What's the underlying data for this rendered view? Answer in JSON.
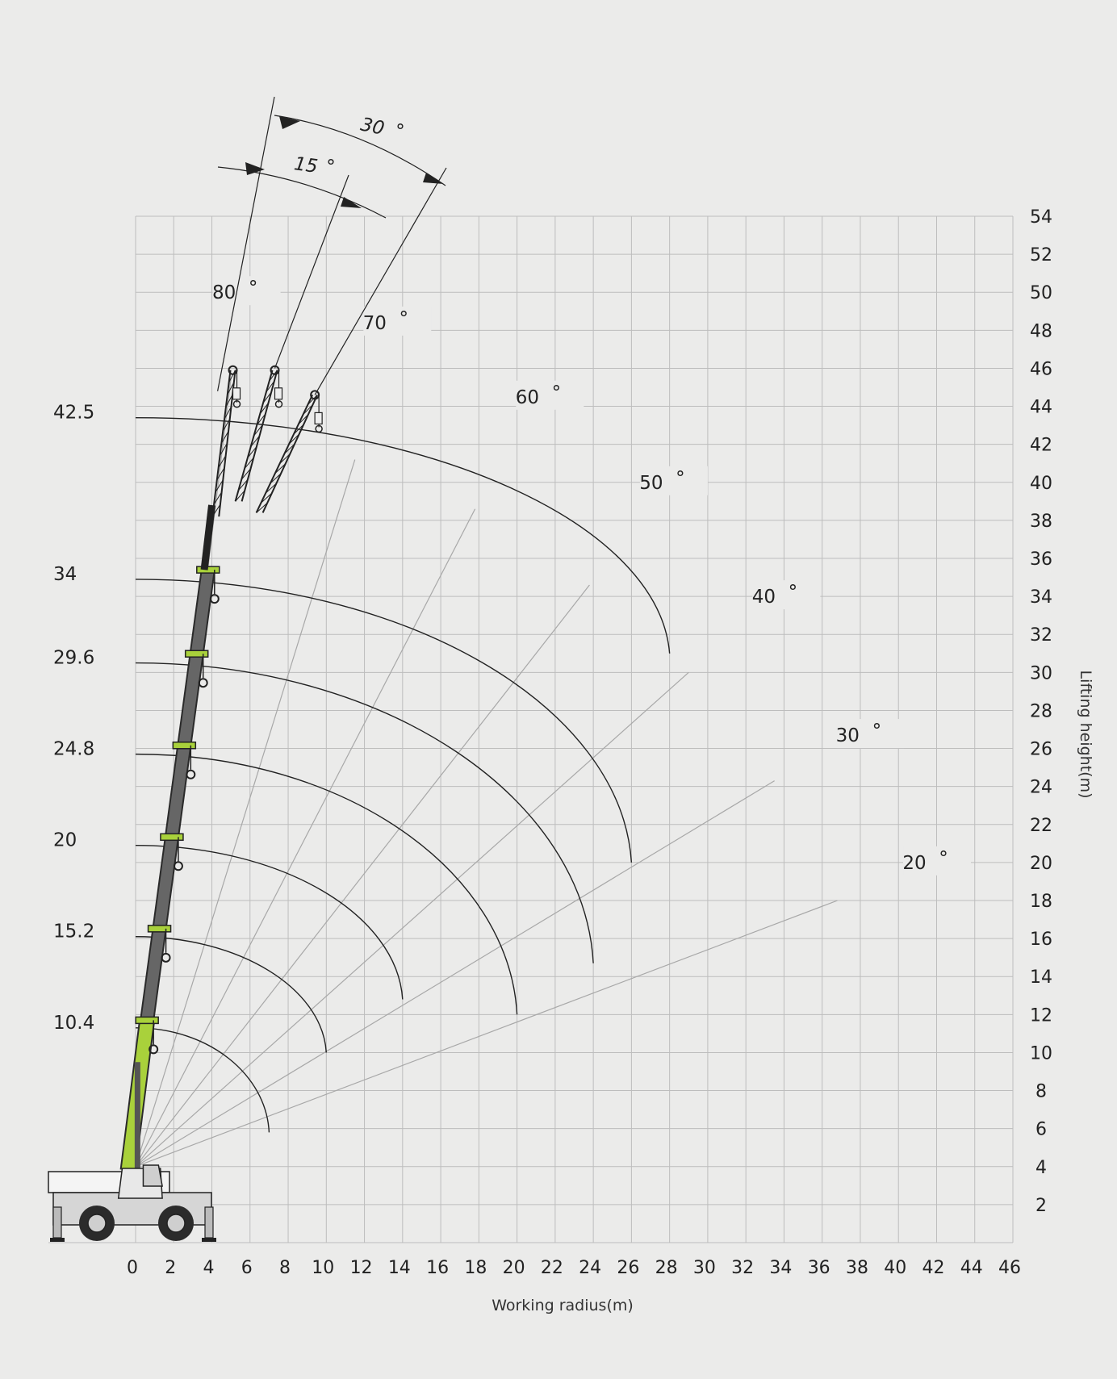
{
  "chart_data": {
    "type": "line",
    "title": "",
    "xlabel": "Working radius(m)",
    "ylabel": "Lifting height(m)",
    "xlim": [
      0,
      46
    ],
    "ylim": [
      0,
      54
    ],
    "x_ticks": [
      0,
      2,
      4,
      6,
      8,
      10,
      12,
      14,
      16,
      18,
      20,
      22,
      24,
      26,
      28,
      30,
      32,
      34,
      36,
      38,
      40,
      42,
      44,
      46
    ],
    "y_ticks": [
      2,
      4,
      6,
      8,
      10,
      12,
      14,
      16,
      18,
      20,
      22,
      24,
      26,
      28,
      30,
      32,
      34,
      36,
      38,
      40,
      42,
      44,
      46,
      48,
      50,
      52,
      54
    ],
    "grid": true,
    "colors": {
      "background": "#ebebea",
      "grid": "#bdbdbd",
      "boom_base": "#a9d13b",
      "boom": "#666666",
      "arc": "#222222",
      "ray": "#a8a8a8"
    },
    "boom_lengths": [
      {
        "label": "10.4",
        "value": 10.4,
        "arc_end": [
          7,
          5.8
        ]
      },
      {
        "label": "15.2",
        "value": 15.2,
        "arc_end": [
          10,
          10
        ]
      },
      {
        "label": "20",
        "value": 20,
        "arc_end": [
          14,
          12.8
        ]
      },
      {
        "label": "24.8",
        "value": 24.8,
        "arc_end": [
          20,
          12
        ]
      },
      {
        "label": "29.6",
        "value": 29.6,
        "arc_end": [
          24,
          14.7
        ]
      },
      {
        "label": "34",
        "value": 34,
        "arc_end": [
          26,
          20
        ]
      },
      {
        "label": "42.5",
        "value": 42.5,
        "arc_end": [
          28,
          31
        ]
      }
    ],
    "boom_angles": [
      {
        "label": "80",
        "value": 80,
        "ray_end": [
          5,
          45.5
        ]
      },
      {
        "label": "70",
        "value": 70,
        "ray_end": [
          11.5,
          41.2
        ]
      },
      {
        "label": "60",
        "value": 60,
        "ray_end": [
          17.8,
          38.6
        ]
      },
      {
        "label": "50",
        "value": 50,
        "ray_end": [
          23.8,
          34.6
        ]
      },
      {
        "label": "40",
        "value": 40,
        "ray_end": [
          29,
          30
        ]
      },
      {
        "label": "30",
        "value": 30,
        "ray_end": [
          33.5,
          24.3
        ]
      },
      {
        "label": "20",
        "value": 20,
        "ray_end": [
          36.8,
          18
        ]
      }
    ],
    "jib_offsets": [
      {
        "label": "15",
        "value": 15
      },
      {
        "label": "30",
        "value": 30
      }
    ],
    "degree_symbol": "°"
  }
}
